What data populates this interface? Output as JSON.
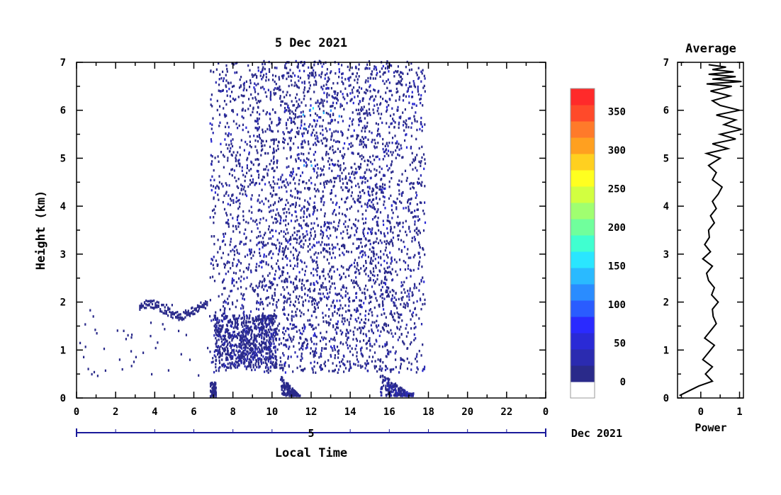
{
  "chart_data": [
    {
      "type": "heatmap",
      "title": "5 Dec 2021",
      "xlabel": "Local Time",
      "ylabel": "Height (km)",
      "xlim": [
        0,
        24
      ],
      "ylim": [
        0,
        7
      ],
      "x_ticks": [
        "0",
        "2",
        "4",
        "6",
        "8",
        "10",
        "12",
        "14",
        "16",
        "18",
        "20",
        "22",
        "0"
      ],
      "y_ticks": [
        "0",
        "1",
        "2",
        "3",
        "4",
        "5",
        "6",
        "7"
      ],
      "date_axis": {
        "day_label": "5",
        "month_label": "Dec 2021"
      },
      "colorbar": {
        "min": 0,
        "max": 380,
        "tick_labels": [
          "0",
          "50",
          "100",
          "150",
          "200",
          "250",
          "300",
          "350"
        ],
        "tick_values": [
          0,
          50,
          100,
          150,
          200,
          250,
          300,
          350
        ],
        "colors": [
          "#ffffff",
          "#2a2a8a",
          "#2b2bb0",
          "#2a2ad6",
          "#2a2aff",
          "#2a5cff",
          "#2a8cff",
          "#2abaff",
          "#2ae6ff",
          "#40ffd0",
          "#70ff9c",
          "#a0ff70",
          "#d2ff40",
          "#ffff20",
          "#ffd020",
          "#ffa020",
          "#ff7a2a",
          "#ff4a2a",
          "#ff2a2a"
        ]
      },
      "regions": [
        {
          "description_time": [
            6.8,
            17.8
          ],
          "height": [
            0.5,
            7.0
          ],
          "typical_value": 10
        },
        {
          "description_time": [
            3.2,
            6.7
          ],
          "height": [
            1.6,
            1.95
          ],
          "typical_value": 10
        },
        {
          "description_time": [
            10.4,
            11.4
          ],
          "height": [
            0.0,
            0.45
          ],
          "typical_value": 20
        },
        {
          "description_time": [
            15.5,
            17.2
          ],
          "height": [
            0.0,
            0.5
          ],
          "typical_value": 20
        }
      ]
    },
    {
      "type": "line",
      "title": "Average",
      "xlabel": "Power",
      "ylabel": "",
      "xlim": [
        -0.6,
        1.1
      ],
      "ylim": [
        0,
        7
      ],
      "x_ticks": [
        "0",
        "1"
      ],
      "y_ticks": [
        "0",
        "1",
        "2",
        "3",
        "4",
        "5",
        "6",
        "7"
      ],
      "series": [
        {
          "x": [
            -0.55,
            -0.3,
            -0.05,
            0.3,
            0.12,
            0.3,
            0.05,
            0.2,
            0.35,
            0.1,
            0.25,
            0.4,
            0.32,
            0.3,
            0.45,
            0.28,
            0.35,
            0.2,
            0.15,
            0.3,
            0.05,
            0.25,
            0.1,
            0.22,
            0.2,
            0.35,
            0.25,
            0.4,
            0.3,
            0.45,
            0.55,
            0.3,
            0.4,
            0.2,
            0.5,
            0.15,
            0.7,
            0.3,
            0.9,
            0.5,
            1.05,
            0.6,
            0.9,
            0.4,
            1.0,
            0.5,
            0.3,
            0.75,
            0.25,
            0.8,
            0.15,
            1.05,
            0.3,
            0.9,
            0.2,
            0.85,
            0.3,
            0.65,
            0.2
          ],
          "y": [
            0.05,
            0.15,
            0.25,
            0.35,
            0.5,
            0.65,
            0.8,
            0.95,
            1.1,
            1.25,
            1.4,
            1.55,
            1.7,
            1.85,
            2.0,
            2.15,
            2.3,
            2.45,
            2.6,
            2.75,
            2.9,
            3.05,
            3.2,
            3.35,
            3.5,
            3.65,
            3.8,
            3.95,
            4.1,
            4.25,
            4.4,
            4.55,
            4.7,
            4.85,
            5.0,
            5.1,
            5.2,
            5.3,
            5.4,
            5.5,
            5.6,
            5.7,
            5.8,
            5.9,
            6.0,
            6.1,
            6.2,
            6.3,
            6.4,
            6.5,
            6.55,
            6.6,
            6.65,
            6.7,
            6.75,
            6.8,
            6.85,
            6.9,
            6.95
          ]
        }
      ]
    }
  ]
}
